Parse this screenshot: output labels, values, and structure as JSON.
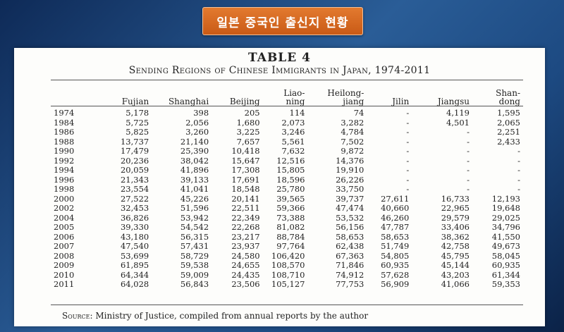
{
  "banner": {
    "text": "일본 중국인 출신지 현황"
  },
  "table": {
    "title": "TABLE 4",
    "subtitle": "Sending Regions of Chinese Immigrants in Japan, 1974-2011",
    "columns": [
      "",
      "Fujian",
      "Shanghai",
      "Beijing",
      "Liao-\nning",
      "Heilong-\njiang",
      "Jilin",
      "Jiangsu",
      "Shan-\ndong"
    ],
    "rows": [
      [
        "1974",
        "5,178",
        "398",
        "205",
        "114",
        "74",
        "-",
        "4,119",
        "1,595"
      ],
      [
        "1984",
        "5,725",
        "2,056",
        "1,680",
        "2,073",
        "3,282",
        "-",
        "4,501",
        "2,065"
      ],
      [
        "1986",
        "5,825",
        "3,260",
        "3,225",
        "3,246",
        "4,784",
        "-",
        "-",
        "2,251"
      ],
      [
        "1988",
        "13,737",
        "21,140",
        "7,657",
        "5,561",
        "7,502",
        "-",
        "-",
        "2,433"
      ],
      [
        "1990",
        "17,479",
        "25,390",
        "10,418",
        "7,632",
        "9,872",
        "-",
        "-",
        "-"
      ],
      [
        "1992",
        "20,236",
        "38,042",
        "15,647",
        "12,516",
        "14,376",
        "-",
        "-",
        "-"
      ],
      [
        "1994",
        "20,059",
        "41,896",
        "17,308",
        "15,805",
        "19,910",
        "-",
        "-",
        "-"
      ],
      [
        "1996",
        "21,343",
        "39,133",
        "17,691",
        "18,596",
        "26,226",
        "-",
        "-",
        "-"
      ],
      [
        "1998",
        "23,554",
        "41,041",
        "18,548",
        "25,780",
        "33,750",
        "-",
        "-",
        "-"
      ],
      [
        "2000",
        "27,522",
        "45,226",
        "20,141",
        "39,565",
        "39,737",
        "27,611",
        "16,733",
        "12,193"
      ],
      [
        "2002",
        "32,453",
        "51,596",
        "22,511",
        "59,366",
        "47,474",
        "40,660",
        "22,965",
        "19,648"
      ],
      [
        "2004",
        "36,826",
        "53,942",
        "22,349",
        "73,388",
        "53,532",
        "46,260",
        "29,579",
        "29,025"
      ],
      [
        "2005",
        "39,330",
        "54,542",
        "22,268",
        "81,082",
        "56,156",
        "47,787",
        "33,406",
        "34,796"
      ],
      [
        "2006",
        "43,180",
        "56,315",
        "23,217",
        "88,784",
        "58,653",
        "58,653",
        "38,362",
        "41,550"
      ],
      [
        "2007",
        "47,540",
        "57,431",
        "23,937",
        "97,764",
        "62,438",
        "51,749",
        "42,758",
        "49,673"
      ],
      [
        "2008",
        "53,699",
        "58,729",
        "24,580",
        "106,420",
        "67,363",
        "54,805",
        "45,795",
        "58,045"
      ],
      [
        "2009",
        "61,895",
        "59,538",
        "24,655",
        "108,570",
        "71,846",
        "60,935",
        "45,144",
        "60,935"
      ],
      [
        "2010",
        "64,344",
        "59,009",
        "24,435",
        "108,710",
        "74,912",
        "57,628",
        "43,203",
        "61,344"
      ],
      [
        "2011",
        "64,028",
        "56,843",
        "23,506",
        "105,127",
        "77,753",
        "56,909",
        "41,066",
        "59,353"
      ]
    ],
    "source_label": "Source:",
    "source_text": " Ministry of Justice, compiled from annual reports by the author"
  }
}
